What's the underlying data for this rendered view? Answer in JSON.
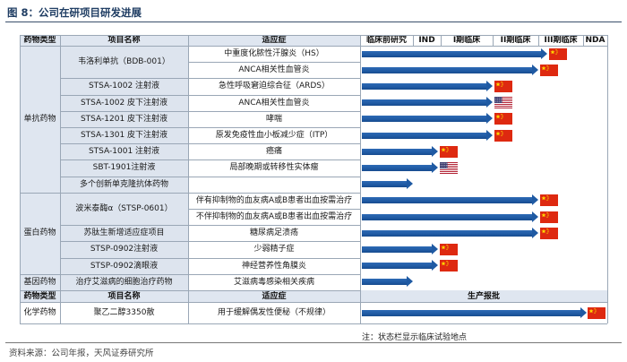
{
  "title": "图 8：公司在研项目研发进展",
  "headers": {
    "type": "药物类型",
    "name": "项目名称",
    "indication": "适应症",
    "phases": [
      "临床前研究",
      "IND",
      "I期临床",
      "II期临床",
      "III期临床",
      "NDA"
    ]
  },
  "groups": [
    {
      "label": "单抗药物"
    },
    {
      "label": "蛋白药物"
    },
    {
      "label": "基因药物"
    }
  ],
  "rows": [
    {
      "name": "韦洛利单抗（BDB-001）",
      "indication": "中重度化脓性汗腺炎（HS）",
      "progress": 4.2,
      "flag": "cn"
    },
    {
      "name": "",
      "indication": "ANCA相关性血管炎",
      "progress": 4.0,
      "flag": "cn"
    },
    {
      "name": "STSA-1002 注射液",
      "indication": "急性呼吸窘迫综合征（ARDS）",
      "progress": 3.0,
      "flag": "cn"
    },
    {
      "name": "STSA-1002 皮下注射液",
      "indication": "ANCA相关性血管炎",
      "progress": 3.0,
      "flag": "us"
    },
    {
      "name": "STSA-1201 皮下注射液",
      "indication": "哮喘",
      "progress": 3.0,
      "flag": "cn"
    },
    {
      "name": "STSA-1301 皮下注射液",
      "indication": "原发免疫性血小板减少症（ITP）",
      "progress": 3.0,
      "flag": "cn"
    },
    {
      "name": "STSA-1001 注射液",
      "indication": "癌痛",
      "progress": 1.9,
      "flag": "cn"
    },
    {
      "name": "SBT-1901注射液",
      "indication": "局部晚期或转移性实体瘤",
      "progress": 1.9,
      "flag": "us"
    },
    {
      "name": "多个创新单克隆抗体药物",
      "indication": "",
      "progress": 1.0,
      "flag": ""
    },
    {
      "name": "波米泰酶α（STSP-0601）",
      "indication": "伴有抑制物的血友病A或B患者出血按需治疗",
      "progress": 4.0,
      "flag": "cn"
    },
    {
      "name": "",
      "indication": "不伴抑制物的血友病A或B患者出血按需治疗",
      "progress": 4.0,
      "flag": "cn"
    },
    {
      "name": "苏肽生新增适应症项目",
      "indication": "糖尿病足溃疡",
      "progress": 4.0,
      "flag": "cn"
    },
    {
      "name": "STSP-0902注射液",
      "indication": "少弱精子症",
      "progress": 1.9,
      "flag": "cn"
    },
    {
      "name": "STSP-0902滴眼液",
      "indication": "神经营养性角膜炎",
      "progress": 1.9,
      "flag": "cn"
    },
    {
      "name": "治疗艾滋病的细胞治疗药物",
      "indication": "艾滋病毒感染相关疾病",
      "progress": 1.0,
      "flag": ""
    }
  ],
  "chem_header": {
    "type": "药物类型",
    "name": "项目名称",
    "indication": "适应症",
    "stage": "生产报批"
  },
  "chem_row": {
    "type": "化学药物",
    "name": "聚乙二醇3350散",
    "indication": "用于缓解偶发性便秘（不规律）",
    "flag": "cn"
  },
  "note": "注：状态栏显示临床试验地点",
  "source": "资料来源：公司年报，天风证券研究所",
  "colors": {
    "bar": "#1f5aa3",
    "header_shade": "#dfe6f0"
  }
}
